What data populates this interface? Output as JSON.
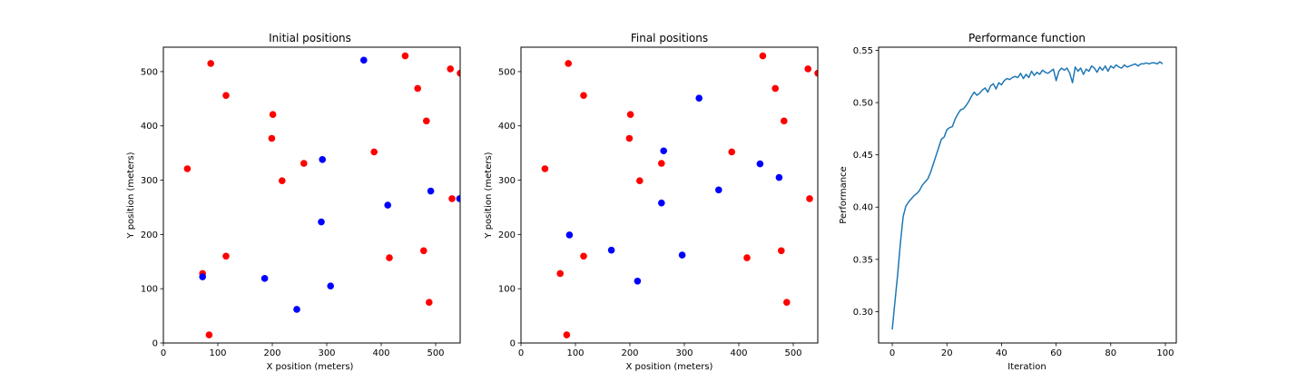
{
  "chart_data": [
    {
      "type": "scatter",
      "title": "Initial positions",
      "xlabel": "X position (meters)",
      "ylabel": "Y position (meters)",
      "xlim": [
        0,
        545
      ],
      "ylim": [
        0,
        545
      ],
      "xticks": [
        0,
        100,
        200,
        300,
        400,
        500
      ],
      "yticks": [
        0,
        100,
        200,
        300,
        400,
        500
      ],
      "grid": false,
      "series": [
        {
          "color": "#ff0000",
          "points": [
            [
              87,
              515
            ],
            [
              115,
              456
            ],
            [
              201,
              421
            ],
            [
              199,
              377
            ],
            [
              44,
              321
            ],
            [
              218,
              299
            ],
            [
              258,
              331
            ],
            [
              387,
              352
            ],
            [
              444,
              529
            ],
            [
              467,
              469
            ],
            [
              483,
              409
            ],
            [
              527,
              505
            ],
            [
              545,
              497
            ],
            [
              530,
              266
            ],
            [
              115,
              160
            ],
            [
              72,
              128
            ],
            [
              478,
              170
            ],
            [
              415,
              157
            ],
            [
              488,
              75
            ],
            [
              84,
              15
            ]
          ]
        },
        {
          "color": "#0000ff",
          "points": [
            [
              368,
              521
            ],
            [
              292,
              338
            ],
            [
              290,
              223
            ],
            [
              412,
              254
            ],
            [
              491,
              280
            ],
            [
              544,
              266
            ],
            [
              72,
              122
            ],
            [
              186,
              119
            ],
            [
              307,
              105
            ],
            [
              245,
              62
            ]
          ]
        }
      ]
    },
    {
      "type": "scatter",
      "title": "Final positions",
      "xlabel": "X position (meters)",
      "ylabel": "Y position (meters)",
      "xlim": [
        0,
        545
      ],
      "ylim": [
        0,
        545
      ],
      "xticks": [
        0,
        100,
        200,
        300,
        400,
        500
      ],
      "yticks": [
        0,
        100,
        200,
        300,
        400,
        500
      ],
      "grid": false,
      "series": [
        {
          "color": "#ff0000",
          "points": [
            [
              87,
              515
            ],
            [
              115,
              456
            ],
            [
              201,
              421
            ],
            [
              199,
              377
            ],
            [
              44,
              321
            ],
            [
              218,
              299
            ],
            [
              258,
              331
            ],
            [
              387,
              352
            ],
            [
              444,
              529
            ],
            [
              467,
              469
            ],
            [
              483,
              409
            ],
            [
              527,
              505
            ],
            [
              545,
              497
            ],
            [
              530,
              266
            ],
            [
              115,
              160
            ],
            [
              72,
              128
            ],
            [
              478,
              170
            ],
            [
              415,
              157
            ],
            [
              488,
              75
            ],
            [
              84,
              15
            ]
          ]
        },
        {
          "color": "#0000ff",
          "points": [
            [
              327,
              451
            ],
            [
              262,
              354
            ],
            [
              363,
              282
            ],
            [
              439,
              330
            ],
            [
              474,
              305
            ],
            [
              258,
              258
            ],
            [
              89,
              199
            ],
            [
              166,
              171
            ],
            [
              296,
              162
            ],
            [
              214,
              114
            ]
          ]
        }
      ]
    },
    {
      "type": "line",
      "title": "Performance function",
      "xlabel": "Iteration",
      "ylabel": "Performance",
      "xlim": [
        -5,
        104
      ],
      "ylim": [
        0.27,
        0.553
      ],
      "xticks": [
        0,
        20,
        40,
        60,
        80,
        100
      ],
      "yticks": [
        0.3,
        0.35,
        0.4,
        0.45,
        0.5,
        0.55
      ],
      "grid": false,
      "series": [
        {
          "color": "#1f77b4",
          "x": [
            0,
            1,
            2,
            3,
            4,
            5,
            6,
            7,
            8,
            9,
            10,
            11,
            12,
            13,
            14,
            15,
            16,
            17,
            18,
            19,
            20,
            21,
            22,
            23,
            24,
            25,
            26,
            27,
            28,
            29,
            30,
            31,
            32,
            33,
            34,
            35,
            36,
            37,
            38,
            39,
            40,
            41,
            42,
            43,
            44,
            45,
            46,
            47,
            48,
            49,
            50,
            51,
            52,
            53,
            54,
            55,
            56,
            57,
            58,
            59,
            60,
            61,
            62,
            63,
            64,
            65,
            66,
            67,
            68,
            69,
            70,
            71,
            72,
            73,
            74,
            75,
            76,
            77,
            78,
            79,
            80,
            81,
            82,
            83,
            84,
            85,
            86,
            87,
            88,
            89,
            90,
            91,
            92,
            93,
            94,
            95,
            96,
            97,
            98,
            99
          ],
          "y": [
            0.283,
            0.31,
            0.336,
            0.366,
            0.391,
            0.401,
            0.405,
            0.408,
            0.411,
            0.413,
            0.416,
            0.421,
            0.424,
            0.427,
            0.433,
            0.441,
            0.449,
            0.457,
            0.465,
            0.467,
            0.474,
            0.476,
            0.477,
            0.484,
            0.489,
            0.493,
            0.494,
            0.497,
            0.501,
            0.506,
            0.51,
            0.507,
            0.509,
            0.512,
            0.514,
            0.51,
            0.516,
            0.518,
            0.513,
            0.519,
            0.517,
            0.521,
            0.523,
            0.522,
            0.524,
            0.525,
            0.524,
            0.528,
            0.523,
            0.527,
            0.524,
            0.53,
            0.526,
            0.529,
            0.527,
            0.531,
            0.529,
            0.528,
            0.53,
            0.532,
            0.521,
            0.53,
            0.533,
            0.531,
            0.533,
            0.528,
            0.519,
            0.534,
            0.53,
            0.533,
            0.527,
            0.532,
            0.53,
            0.535,
            0.533,
            0.529,
            0.534,
            0.531,
            0.535,
            0.53,
            0.535,
            0.533,
            0.536,
            0.534,
            0.533,
            0.536,
            0.534,
            0.535,
            0.536,
            0.537,
            0.535,
            0.537,
            0.537,
            0.538,
            0.537,
            0.538,
            0.538,
            0.537,
            0.539,
            0.537
          ]
        }
      ]
    }
  ]
}
